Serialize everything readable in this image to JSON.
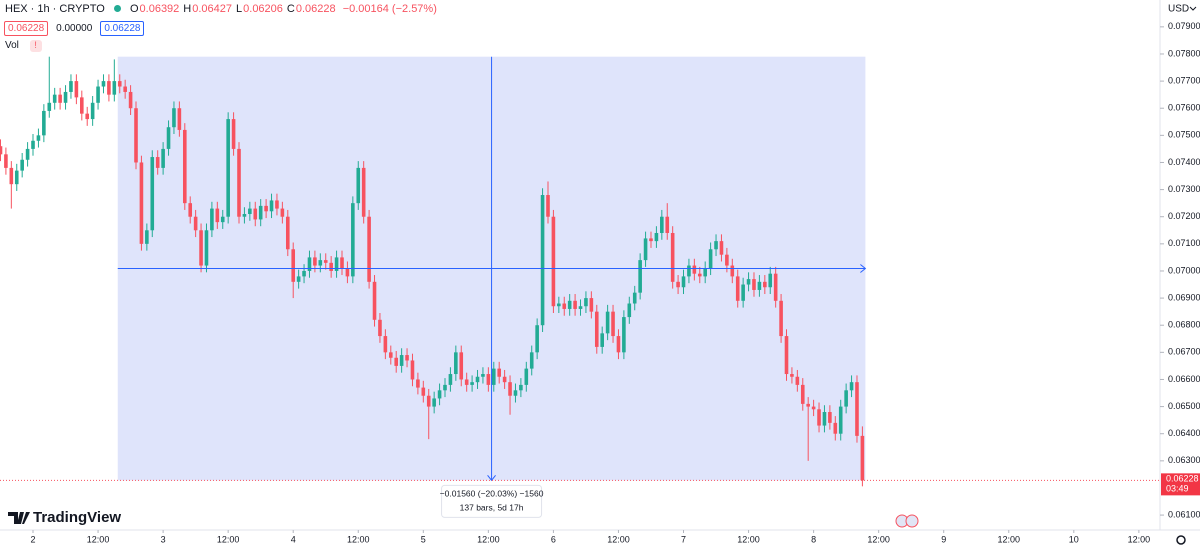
{
  "chart_data": {
    "type": "candlestick",
    "symbol": "HEX · 1h · CRYPTO",
    "ohlc": [
      {
        "label": "O",
        "value": "0.06392"
      },
      {
        "label": "H",
        "value": "0.06427"
      },
      {
        "label": "L",
        "value": "0.06206"
      },
      {
        "label": "C",
        "value": "0.06228"
      }
    ],
    "change": "−0.00164 (−2.57%)",
    "quote_boxes": [
      "0.06228",
      "0.00000",
      "0.06228"
    ],
    "volume_label": "Vol",
    "currency": "USD",
    "brand": "TradingView",
    "up_color": "#22ab94",
    "down_color": "#f7525f",
    "open": [
      0.0746,
      0.0743,
      0.0738,
      0.0732,
      0.0737,
      0.0741,
      0.0745,
      0.0748,
      0.075,
      0.0759,
      0.0762,
      0.0765,
      0.0762,
      0.0766,
      0.077,
      0.0764,
      0.0758,
      0.0756,
      0.0762,
      0.0768,
      0.077,
      0.0765,
      0.077,
      0.0768,
      0.0766,
      0.076,
      0.074,
      0.071,
      0.0715,
      0.0742,
      0.0738,
      0.0745,
      0.0753,
      0.076,
      0.0752,
      0.0725,
      0.072,
      0.0715,
      0.0702,
      0.0715,
      0.0723,
      0.0718,
      0.072,
      0.0756,
      0.0745,
      0.072,
      0.0721,
      0.0723,
      0.0719,
      0.0724,
      0.0722,
      0.0726,
      0.0723,
      0.072,
      0.0708,
      0.0696,
      0.0698,
      0.07,
      0.0705,
      0.0702,
      0.0704,
      0.0703,
      0.07,
      0.0705,
      0.0701,
      0.0698,
      0.0725,
      0.0738,
      0.072,
      0.0696,
      0.0682,
      0.0676,
      0.067,
      0.0668,
      0.0665,
      0.0669,
      0.0667,
      0.066,
      0.0657,
      0.0654,
      0.065,
      0.0653,
      0.0656,
      0.0658,
      0.0662,
      0.067,
      0.066,
      0.0658,
      0.0659,
      0.0661,
      0.0662,
      0.0658,
      0.0664,
      0.0661,
      0.0659,
      0.0654,
      0.0656,
      0.0658,
      0.0664,
      0.067,
      0.068,
      0.0728,
      0.072,
      0.0687,
      0.0688,
      0.0686,
      0.0689,
      0.0686,
      0.0687,
      0.069,
      0.0685,
      0.0672,
      0.0677,
      0.0685,
      0.0676,
      0.067,
      0.0683,
      0.0688,
      0.0692,
      0.0704,
      0.0712,
      0.0711,
      0.0714,
      0.072,
      0.0714,
      0.0696,
      0.0694,
      0.0698,
      0.0702,
      0.0699,
      0.0698,
      0.0701,
      0.0708,
      0.0711,
      0.0706,
      0.0702,
      0.0698,
      0.0689,
      0.0695,
      0.0697,
      0.0693,
      0.0696,
      0.0694,
      0.0699,
      0.0689,
      0.0676,
      0.0662,
      0.0661,
      0.0658,
      0.0651,
      0.065,
      0.0649,
      0.0643,
      0.0648,
      0.0644,
      0.064,
      0.065,
      0.0656,
      0.0659,
      0.06392
    ],
    "high": [
      0.07485,
      0.07455,
      0.07405,
      0.07395,
      0.07435,
      0.07475,
      0.07505,
      0.07525,
      0.07615,
      0.0779,
      0.07675,
      0.07675,
      0.07685,
      0.07725,
      0.07725,
      0.07665,
      0.07605,
      0.07645,
      0.07705,
      0.07725,
      0.07725,
      0.0778,
      0.07725,
      0.07705,
      0.07685,
      0.07625,
      0.07425,
      0.07175,
      0.07445,
      0.07445,
      0.07475,
      0.07555,
      0.07625,
      0.07625,
      0.07545,
      0.07275,
      0.07225,
      0.07175,
      0.07175,
      0.07255,
      0.07255,
      0.07225,
      0.07585,
      0.07585,
      0.07475,
      0.07235,
      0.07255,
      0.07255,
      0.07265,
      0.07265,
      0.07285,
      0.07285,
      0.07255,
      0.07225,
      0.07105,
      0.07005,
      0.07025,
      0.07075,
      0.07075,
      0.07065,
      0.07065,
      0.07055,
      0.07075,
      0.07075,
      0.07035,
      0.07275,
      0.07405,
      0.07405,
      0.07225,
      0.06985,
      0.06845,
      0.06785,
      0.06725,
      0.06705,
      0.06715,
      0.06715,
      0.06695,
      0.06625,
      0.06595,
      0.06565,
      0.06555,
      0.06585,
      0.06605,
      0.06645,
      0.06725,
      0.06725,
      0.06625,
      0.06615,
      0.06635,
      0.06645,
      0.06645,
      0.06665,
      0.06665,
      0.06635,
      0.06615,
      0.06585,
      0.06605,
      0.06665,
      0.06725,
      0.06825,
      0.07305,
      0.0733,
      0.07225,
      0.06905,
      0.06905,
      0.06915,
      0.06915,
      0.06895,
      0.06925,
      0.06925,
      0.06875,
      0.06795,
      0.06875,
      0.06875,
      0.06785,
      0.06855,
      0.06905,
      0.06945,
      0.07065,
      0.07145,
      0.07145,
      0.07165,
      0.07225,
      0.0725,
      0.07165,
      0.06985,
      0.07005,
      0.07045,
      0.07045,
      0.07015,
      0.07035,
      0.07105,
      0.07135,
      0.07135,
      0.07085,
      0.07045,
      0.07005,
      0.06975,
      0.06995,
      0.06995,
      0.06985,
      0.06985,
      0.07015,
      0.07015,
      0.06915,
      0.06785,
      0.06645,
      0.06635,
      0.06605,
      0.06535,
      0.06525,
      0.06515,
      0.06505,
      0.06505,
      0.06465,
      0.06525,
      0.06585,
      0.06615,
      0.06615,
      0.06427
    ],
    "low": [
      0.07405,
      0.07355,
      0.0723,
      0.07295,
      0.07345,
      0.07385,
      0.07425,
      0.07455,
      0.07475,
      0.07565,
      0.07595,
      0.07595,
      0.07595,
      0.07635,
      0.07615,
      0.07555,
      0.07535,
      0.07535,
      0.07595,
      0.07655,
      0.07625,
      0.07625,
      0.07655,
      0.07635,
      0.07575,
      0.07375,
      0.07075,
      0.07075,
      0.07125,
      0.07355,
      0.07355,
      0.07425,
      0.07505,
      0.07495,
      0.07225,
      0.07175,
      0.07125,
      0.06995,
      0.06995,
      0.07125,
      0.07155,
      0.07155,
      0.07175,
      0.07425,
      0.07175,
      0.07175,
      0.07185,
      0.07165,
      0.07165,
      0.07195,
      0.07195,
      0.07205,
      0.07175,
      0.07055,
      0.069,
      0.06935,
      0.06955,
      0.06975,
      0.06995,
      0.06995,
      0.07005,
      0.06975,
      0.06975,
      0.06985,
      0.06955,
      0.06955,
      0.07225,
      0.07175,
      0.06935,
      0.06795,
      0.06735,
      0.06675,
      0.06655,
      0.06625,
      0.06625,
      0.06645,
      0.06575,
      0.06545,
      0.06515,
      0.0638,
      0.06475,
      0.06505,
      0.06535,
      0.06555,
      0.06595,
      0.06575,
      0.06555,
      0.06555,
      0.06565,
      0.06585,
      0.06555,
      0.06555,
      0.06585,
      0.06565,
      0.0647,
      0.06515,
      0.06535,
      0.06555,
      0.06615,
      0.06675,
      0.06775,
      0.07175,
      0.06845,
      0.06845,
      0.06835,
      0.06835,
      0.06835,
      0.06835,
      0.06845,
      0.06825,
      0.06695,
      0.06695,
      0.06745,
      0.06735,
      0.06675,
      0.06675,
      0.06805,
      0.06855,
      0.06895,
      0.07015,
      0.07085,
      0.07085,
      0.07115,
      0.07115,
      0.06935,
      0.06915,
      0.06915,
      0.06955,
      0.06965,
      0.06955,
      0.06955,
      0.06985,
      0.07055,
      0.07035,
      0.06995,
      0.06955,
      0.06865,
      0.06865,
      0.06925,
      0.06905,
      0.06905,
      0.06915,
      0.06915,
      0.06865,
      0.06735,
      0.06595,
      0.06585,
      0.06555,
      0.06485,
      0.063,
      0.06465,
      0.06405,
      0.06405,
      0.06415,
      0.06375,
      0.06375,
      0.06475,
      0.06535,
      0.06367,
      0.06206
    ],
    "close": [
      0.0743,
      0.0738,
      0.0732,
      0.0737,
      0.0741,
      0.0745,
      0.0748,
      0.075,
      0.0759,
      0.0762,
      0.0765,
      0.0762,
      0.0766,
      0.077,
      0.0764,
      0.0758,
      0.0756,
      0.0762,
      0.0768,
      0.077,
      0.0765,
      0.077,
      0.0768,
      0.0766,
      0.076,
      0.074,
      0.071,
      0.0715,
      0.0742,
      0.0738,
      0.0745,
      0.0753,
      0.076,
      0.0752,
      0.0725,
      0.072,
      0.0715,
      0.0702,
      0.0715,
      0.0723,
      0.0718,
      0.072,
      0.0756,
      0.0745,
      0.072,
      0.0721,
      0.0723,
      0.0719,
      0.0724,
      0.0722,
      0.0726,
      0.0723,
      0.072,
      0.0708,
      0.0696,
      0.0698,
      0.07,
      0.0705,
      0.0702,
      0.0704,
      0.0703,
      0.07,
      0.0705,
      0.0701,
      0.0698,
      0.0725,
      0.0738,
      0.072,
      0.0696,
      0.0682,
      0.0676,
      0.067,
      0.0668,
      0.0665,
      0.0669,
      0.0667,
      0.066,
      0.0657,
      0.0654,
      0.065,
      0.0653,
      0.0656,
      0.0658,
      0.0662,
      0.067,
      0.066,
      0.0658,
      0.0659,
      0.0661,
      0.0662,
      0.0658,
      0.0664,
      0.0661,
      0.0659,
      0.0654,
      0.0656,
      0.0658,
      0.0664,
      0.067,
      0.068,
      0.0728,
      0.072,
      0.0687,
      0.0688,
      0.0686,
      0.0689,
      0.0686,
      0.0687,
      0.069,
      0.0685,
      0.0672,
      0.0677,
      0.0685,
      0.0676,
      0.067,
      0.0683,
      0.0688,
      0.0692,
      0.0704,
      0.0712,
      0.0711,
      0.0714,
      0.072,
      0.0714,
      0.0696,
      0.0694,
      0.0698,
      0.0702,
      0.0699,
      0.0698,
      0.0701,
      0.0708,
      0.0711,
      0.0706,
      0.0702,
      0.0698,
      0.0689,
      0.0695,
      0.0697,
      0.0693,
      0.0696,
      0.0694,
      0.0699,
      0.0689,
      0.0676,
      0.0662,
      0.0661,
      0.0658,
      0.0651,
      0.065,
      0.0649,
      0.0643,
      0.0648,
      0.0644,
      0.064,
      0.065,
      0.0656,
      0.0659,
      0.06392,
      0.06228
    ],
    "xlim": [
      -0.09,
      213.9
    ],
    "xticks": [
      {
        "value": 6,
        "label": "2"
      },
      {
        "value": 18,
        "label": "12:00"
      },
      {
        "value": 30,
        "label": "3"
      },
      {
        "value": 42,
        "label": "12:00"
      },
      {
        "value": 54,
        "label": "4"
      },
      {
        "value": 66,
        "label": "12:00"
      },
      {
        "value": 78,
        "label": "5"
      },
      {
        "value": 90,
        "label": "12:00"
      },
      {
        "value": 102,
        "label": "6"
      },
      {
        "value": 114,
        "label": "12:00"
      },
      {
        "value": 126,
        "label": "7"
      },
      {
        "value": 138,
        "label": "12:00"
      },
      {
        "value": 150,
        "label": "8"
      },
      {
        "value": 162,
        "label": "12:00"
      },
      {
        "value": 174,
        "label": "9"
      },
      {
        "value": 186,
        "label": "12:00"
      },
      {
        "value": 198,
        "label": "10"
      },
      {
        "value": 210,
        "label": "12:00"
      }
    ],
    "ylim": [
      0.06045,
      0.07999
    ],
    "yticks": [
      {
        "value": 0.079,
        "label": "0.07900"
      },
      {
        "value": 0.078,
        "label": "0.07800"
      },
      {
        "value": 0.077,
        "label": "0.07700"
      },
      {
        "value": 0.076,
        "label": "0.07600"
      },
      {
        "value": 0.075,
        "label": "0.07500"
      },
      {
        "value": 0.074,
        "label": "0.07400"
      },
      {
        "value": 0.073,
        "label": "0.07300"
      },
      {
        "value": 0.072,
        "label": "0.07200"
      },
      {
        "value": 0.071,
        "label": "0.07100"
      },
      {
        "value": 0.07,
        "label": "0.07000"
      },
      {
        "value": 0.069,
        "label": "0.06900"
      },
      {
        "value": 0.068,
        "label": "0.06800"
      },
      {
        "value": 0.067,
        "label": "0.06700"
      },
      {
        "value": 0.066,
        "label": "0.06600"
      },
      {
        "value": 0.065,
        "label": "0.06500"
      },
      {
        "value": 0.064,
        "label": "0.06400"
      },
      {
        "value": 0.063,
        "label": "0.06300"
      },
      {
        "value": 0.061,
        "label": "0.06100"
      }
    ],
    "measure": {
      "start": 22,
      "end": 159,
      "high": 0.0779,
      "low": 0.06228,
      "label": "−0.01560 (−20.03%) −1560",
      "bars": "137 bars, 5d 17h"
    },
    "last_price": {
      "value": 0.06228,
      "label": "0.06228",
      "countdown": "03:49"
    }
  }
}
